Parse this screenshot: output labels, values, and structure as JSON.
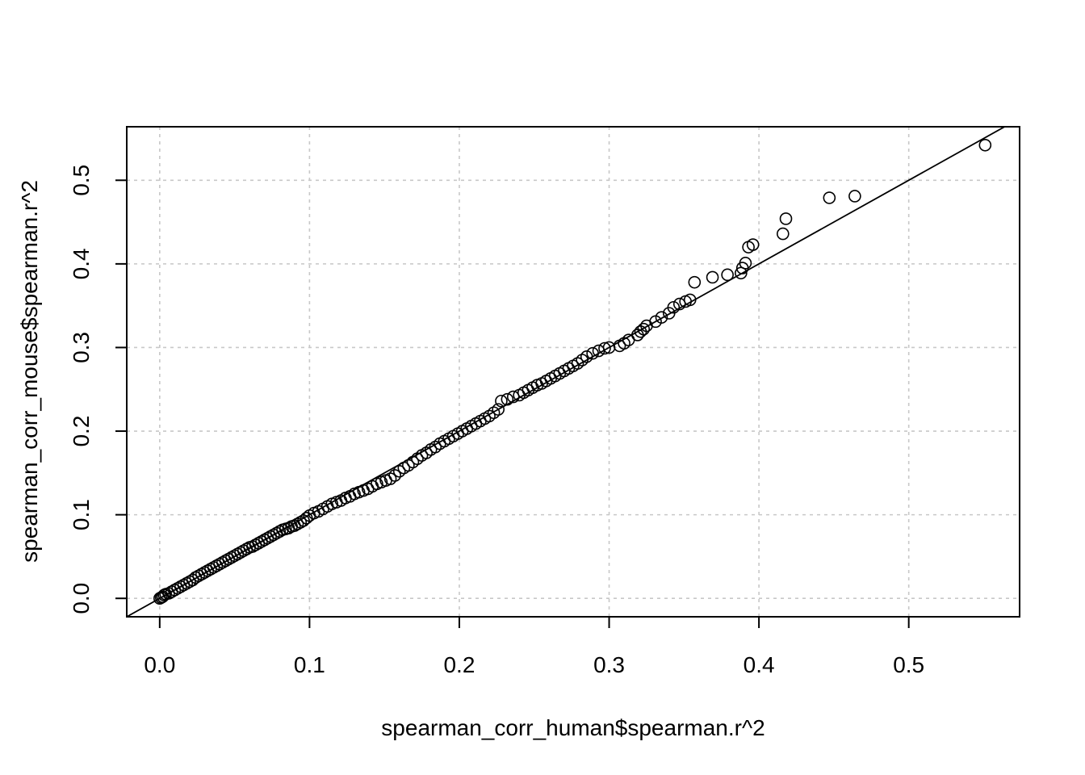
{
  "chart_data": {
    "type": "scatter",
    "title": "",
    "xlabel": "spearman_corr_human$spearman.r^2",
    "ylabel": "spearman_corr_mouse$spearman.r^2",
    "xlim": [
      -0.022,
      0.574
    ],
    "ylim": [
      -0.022,
      0.564
    ],
    "xticks": [
      0.0,
      0.1,
      0.2,
      0.3,
      0.4,
      0.5
    ],
    "yticks": [
      0.0,
      0.1,
      0.2,
      0.3,
      0.4,
      0.5
    ],
    "xtick_labels": [
      "0.0",
      "0.1",
      "0.2",
      "0.3",
      "0.4",
      "0.5"
    ],
    "ytick_labels": [
      "0.0",
      "0.1",
      "0.2",
      "0.3",
      "0.4",
      "0.5"
    ],
    "grid": true,
    "reference_line": {
      "intercept": 0,
      "slope": 1
    },
    "marker": "open-circle",
    "colors": {
      "points": "#000000",
      "grid": "#c8c8c8",
      "line": "#000000"
    },
    "series": [
      {
        "x": [
          0.0,
          0.001,
          0.002,
          0.003,
          0.004,
          0.006,
          0.008,
          0.01,
          0.012,
          0.014,
          0.016,
          0.018,
          0.02,
          0.022,
          0.024,
          0.026,
          0.028,
          0.03,
          0.032,
          0.034,
          0.036,
          0.038,
          0.04,
          0.042,
          0.044,
          0.046,
          0.048,
          0.05,
          0.052,
          0.054,
          0.056,
          0.058,
          0.06,
          0.062,
          0.064,
          0.066,
          0.068,
          0.07,
          0.072,
          0.074,
          0.076,
          0.078,
          0.08,
          0.082,
          0.084,
          0.086,
          0.088,
          0.09,
          0.092,
          0.094,
          0.096,
          0.098,
          0.1,
          0.103,
          0.106,
          0.109,
          0.112,
          0.115,
          0.118,
          0.121,
          0.124,
          0.127,
          0.13,
          0.133,
          0.136,
          0.139,
          0.142,
          0.145,
          0.148,
          0.151,
          0.154,
          0.157,
          0.16,
          0.163,
          0.166,
          0.169,
          0.172,
          0.175,
          0.178,
          0.181,
          0.184,
          0.187,
          0.19,
          0.193,
          0.196,
          0.199,
          0.202,
          0.205,
          0.208,
          0.211,
          0.214,
          0.217,
          0.22,
          0.223,
          0.226,
          0.228,
          0.232,
          0.236,
          0.24,
          0.243,
          0.246,
          0.249,
          0.252,
          0.255,
          0.258,
          0.261,
          0.264,
          0.267,
          0.27,
          0.273,
          0.276,
          0.279,
          0.282,
          0.285,
          0.289,
          0.293,
          0.297,
          0.3,
          0.307,
          0.31,
          0.313,
          0.319,
          0.321,
          0.323,
          0.325,
          0.331,
          0.335,
          0.34,
          0.343,
          0.347,
          0.351,
          0.354,
          0.357,
          0.369,
          0.379,
          0.388,
          0.389,
          0.391,
          0.393,
          0.396,
          0.416,
          0.418,
          0.447,
          0.464,
          0.551
        ],
        "y": [
          0.0,
          0.001,
          0.002,
          0.004,
          0.005,
          0.006,
          0.008,
          0.01,
          0.012,
          0.014,
          0.016,
          0.018,
          0.02,
          0.022,
          0.025,
          0.027,
          0.029,
          0.031,
          0.033,
          0.035,
          0.037,
          0.039,
          0.041,
          0.043,
          0.045,
          0.047,
          0.049,
          0.051,
          0.053,
          0.055,
          0.057,
          0.059,
          0.061,
          0.062,
          0.064,
          0.066,
          0.068,
          0.07,
          0.072,
          0.074,
          0.076,
          0.078,
          0.08,
          0.082,
          0.083,
          0.084,
          0.086,
          0.087,
          0.089,
          0.091,
          0.093,
          0.096,
          0.099,
          0.102,
          0.104,
          0.107,
          0.11,
          0.113,
          0.115,
          0.117,
          0.12,
          0.122,
          0.125,
          0.127,
          0.129,
          0.131,
          0.134,
          0.137,
          0.139,
          0.141,
          0.143,
          0.147,
          0.152,
          0.156,
          0.159,
          0.163,
          0.167,
          0.171,
          0.174,
          0.178,
          0.181,
          0.185,
          0.188,
          0.191,
          0.194,
          0.197,
          0.2,
          0.203,
          0.206,
          0.209,
          0.212,
          0.215,
          0.218,
          0.222,
          0.226,
          0.236,
          0.238,
          0.241,
          0.243,
          0.246,
          0.249,
          0.252,
          0.255,
          0.257,
          0.26,
          0.263,
          0.266,
          0.269,
          0.272,
          0.275,
          0.278,
          0.281,
          0.285,
          0.289,
          0.293,
          0.296,
          0.299,
          0.3,
          0.302,
          0.305,
          0.309,
          0.315,
          0.319,
          0.322,
          0.326,
          0.331,
          0.336,
          0.341,
          0.348,
          0.352,
          0.355,
          0.357,
          0.378,
          0.384,
          0.387,
          0.389,
          0.395,
          0.401,
          0.42,
          0.423,
          0.436,
          0.454,
          0.479,
          0.481,
          0.542
        ]
      }
    ]
  }
}
